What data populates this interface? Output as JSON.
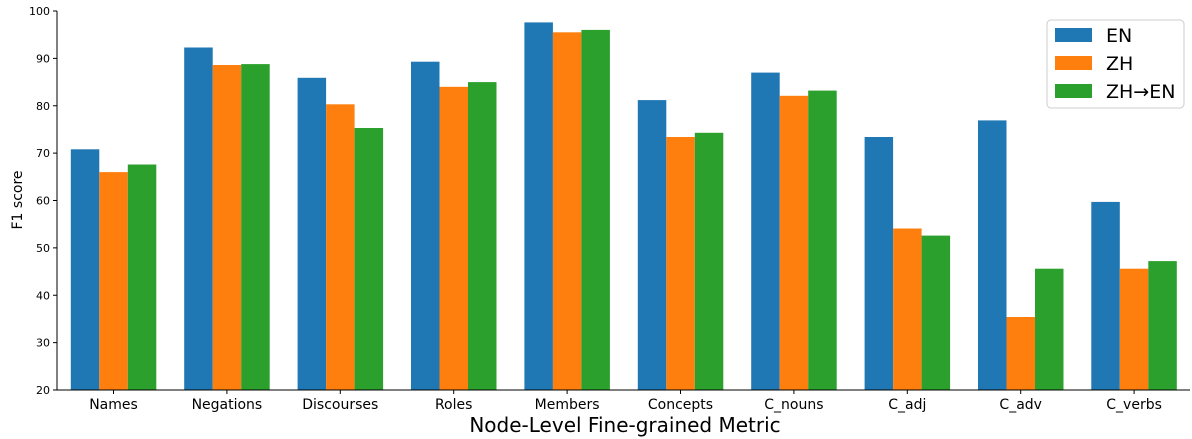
{
  "chart_data": {
    "type": "bar",
    "categories": [
      "Names",
      "Negations",
      "Discourses",
      "Roles",
      "Members",
      "Concepts",
      "C_nouns",
      "C_adj",
      "C_adv",
      "C_verbs"
    ],
    "series": [
      {
        "name": "EN",
        "color": "#1f77b4",
        "values": [
          70.8,
          92.3,
          85.9,
          89.3,
          97.6,
          81.2,
          87.0,
          73.4,
          76.9,
          59.7
        ]
      },
      {
        "name": "ZH",
        "color": "#ff7f0e",
        "values": [
          66.0,
          88.6,
          80.3,
          84.0,
          95.5,
          73.4,
          82.1,
          54.1,
          35.4,
          45.6
        ]
      },
      {
        "name": "ZH→EN",
        "color": "#2ca02c",
        "values": [
          67.6,
          88.8,
          75.3,
          85.0,
          96.0,
          74.3,
          83.2,
          52.6,
          45.6,
          47.2
        ]
      }
    ],
    "title": "",
    "xlabel": "Node-Level Fine-grained Metric",
    "ylabel": "F1 score",
    "ylim": [
      20,
      100
    ],
    "yticks": [
      20,
      30,
      40,
      50,
      60,
      70,
      80,
      90,
      100
    ],
    "grid": false,
    "legend_position": "top-right"
  }
}
